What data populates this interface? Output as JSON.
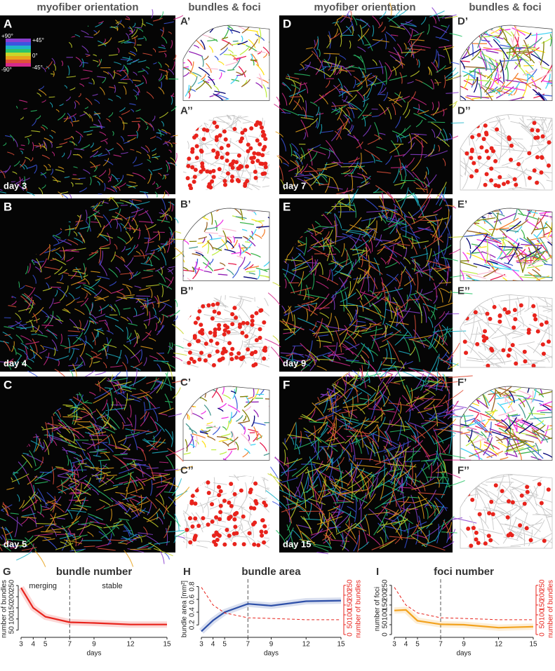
{
  "headers": [
    "myofiber orientation",
    "bundles & foci",
    "myofiber orientation",
    "bundles & foci"
  ],
  "panels": [
    {
      "label": "A",
      "day": "day 3",
      "bundles_label": "A’",
      "foci_label": "A’’"
    },
    {
      "label": "B",
      "day": "day 4",
      "bundles_label": "B’",
      "foci_label": "B’’"
    },
    {
      "label": "C",
      "day": "day 5",
      "bundles_label": "C’",
      "foci_label": "C’’"
    },
    {
      "label": "D",
      "day": "day 7",
      "bundles_label": "D’",
      "foci_label": "D’’"
    },
    {
      "label": "E",
      "day": "day 9",
      "bundles_label": "E’",
      "foci_label": "E’’"
    },
    {
      "label": "F",
      "day": "day 15",
      "bundles_label": "F’",
      "foci_label": "F’’"
    }
  ],
  "orientation_key": [
    "+90°",
    "+45°",
    "0°",
    "-45°",
    "-90°"
  ],
  "chart_data": [
    {
      "panel": "G",
      "type": "line",
      "title": "bundle number",
      "xlabel": "days",
      "ylabel": "number of bundles",
      "x": [
        3,
        4,
        5,
        7,
        9,
        12,
        15
      ],
      "xlim": [
        3,
        15
      ],
      "xticks": [
        3,
        4,
        5,
        7,
        9,
        12,
        15
      ],
      "ylim": [
        30,
        260
      ],
      "yticks": [
        50,
        100,
        150,
        200,
        250
      ],
      "vline": 7,
      "annotations": [
        "merging",
        "stable"
      ],
      "series": [
        {
          "color": "#e8231c",
          "values": [
            240,
            150,
            110,
            85,
            82,
            75,
            75
          ]
        }
      ]
    },
    {
      "panel": "H",
      "type": "line",
      "title": "bundle area",
      "xlabel": "days",
      "ylabel": "bundle area [mm²]",
      "y2label": "number of bundles",
      "x": [
        3,
        4,
        5,
        7,
        9,
        12,
        15
      ],
      "xlim": [
        3,
        15
      ],
      "xticks": [
        3,
        4,
        5,
        7,
        9,
        12,
        15
      ],
      "ylim": [
        0.05,
        0.85
      ],
      "yticks": [
        0.2,
        0.4,
        0.6,
        0.8
      ],
      "y2lim": [
        0,
        260
      ],
      "y2ticks": [
        0,
        50,
        100,
        150,
        200,
        250
      ],
      "vline": 7,
      "series": [
        {
          "color": "#2d4fa8",
          "values": [
            0.1,
            0.27,
            0.4,
            0.53,
            0.5,
            0.57,
            0.58
          ]
        },
        {
          "color": "#e8231c",
          "axis": "y2",
          "dash": true,
          "values": [
            240,
            150,
            110,
            85,
            82,
            75,
            75
          ]
        }
      ]
    },
    {
      "panel": "I",
      "type": "line",
      "title": "foci number",
      "xlabel": "days",
      "ylabel": "number of foci",
      "y2label": "number of bundles",
      "x": [
        3,
        4,
        5,
        7,
        9,
        12,
        15
      ],
      "xlim": [
        3,
        15
      ],
      "xticks": [
        3,
        4,
        5,
        7,
        9,
        12,
        15
      ],
      "ylim": [
        0,
        260
      ],
      "yticks": [
        0,
        50,
        100,
        150,
        200,
        250
      ],
      "y2lim": [
        0,
        260
      ],
      "y2ticks": [
        0,
        50,
        100,
        150,
        200,
        250
      ],
      "vline": 7,
      "series": [
        {
          "color": "#f2a21e",
          "values": [
            122,
            125,
            70,
            52,
            50,
            35,
            40
          ]
        },
        {
          "color": "#e8231c",
          "axis": "y2",
          "dash": true,
          "values": [
            240,
            150,
            110,
            85,
            82,
            75,
            75
          ]
        }
      ]
    }
  ]
}
